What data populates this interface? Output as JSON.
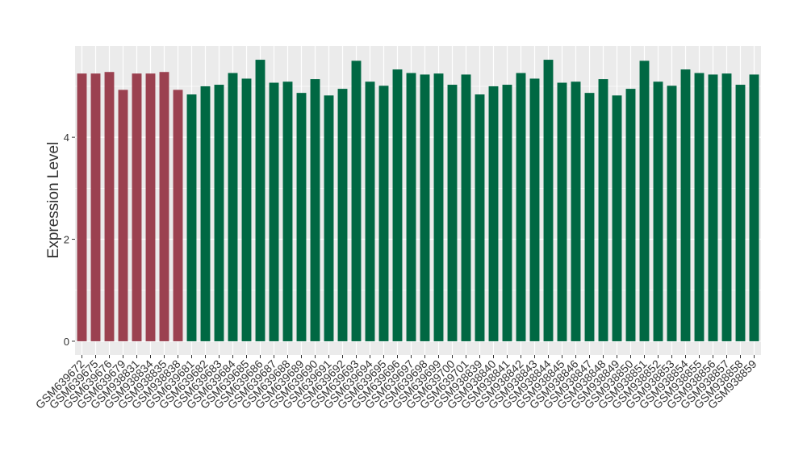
{
  "chart_data": {
    "type": "bar",
    "y_label": "Expression Level",
    "categories": [
      "GSM639672",
      "GSM639675",
      "GSM639676",
      "GSM639679",
      "GSM938831",
      "GSM938834",
      "GSM938835",
      "GSM938838",
      "GSM639681",
      "GSM639682",
      "GSM639683",
      "GSM639684",
      "GSM639685",
      "GSM639686",
      "GSM639687",
      "GSM639688",
      "GSM639689",
      "GSM639690",
      "GSM639691",
      "GSM639692",
      "GSM639693",
      "GSM639694",
      "GSM639695",
      "GSM639696",
      "GSM639697",
      "GSM639698",
      "GSM639699",
      "GSM639700",
      "GSM639701",
      "GSM938839",
      "GSM938840",
      "GSM938841",
      "GSM938842",
      "GSM938843",
      "GSM938844",
      "GSM938845",
      "GSM938846",
      "GSM938847",
      "GSM938848",
      "GSM938849",
      "GSM938850",
      "GSM938851",
      "GSM938852",
      "GSM938853",
      "GSM938854",
      "GSM938855",
      "GSM938856",
      "GSM938857",
      "GSM938858",
      "GSM938859"
    ],
    "values": [
      5.25,
      5.25,
      5.28,
      4.93,
      5.25,
      5.25,
      5.28,
      4.93,
      4.84,
      5.0,
      5.03,
      5.26,
      5.15,
      5.52,
      5.07,
      5.09,
      4.87,
      5.14,
      4.82,
      4.95,
      5.5,
      5.09,
      5.01,
      5.33,
      5.26,
      5.23,
      5.25,
      5.03,
      5.23,
      4.84,
      5.0,
      5.03,
      5.26,
      5.15,
      5.52,
      5.07,
      5.09,
      4.87,
      5.14,
      4.82,
      4.95,
      5.5,
      5.09,
      5.01,
      5.33,
      5.26,
      5.23,
      5.25,
      5.03,
      5.23
    ],
    "colors": [
      "#9b4150",
      "#9b4150",
      "#9b4150",
      "#9b4150",
      "#9b4150",
      "#9b4150",
      "#9b4150",
      "#9b4150",
      "#006843",
      "#006843",
      "#006843",
      "#006843",
      "#006843",
      "#006843",
      "#006843",
      "#006843",
      "#006843",
      "#006843",
      "#006843",
      "#006843",
      "#006843",
      "#006843",
      "#006843",
      "#006843",
      "#006843",
      "#006843",
      "#006843",
      "#006843",
      "#006843",
      "#006843",
      "#006843",
      "#006843",
      "#006843",
      "#006843",
      "#006843",
      "#006843",
      "#006843",
      "#006843",
      "#006843",
      "#006843",
      "#006843",
      "#006843",
      "#006843",
      "#006843",
      "#006843",
      "#006843",
      "#006843",
      "#006843",
      "#006843",
      "#006843"
    ],
    "ylim": [
      -0.27,
      5.79
    ],
    "yticks": [
      0,
      2,
      4
    ],
    "yminor": [
      1,
      3,
      5
    ],
    "grid": true
  }
}
